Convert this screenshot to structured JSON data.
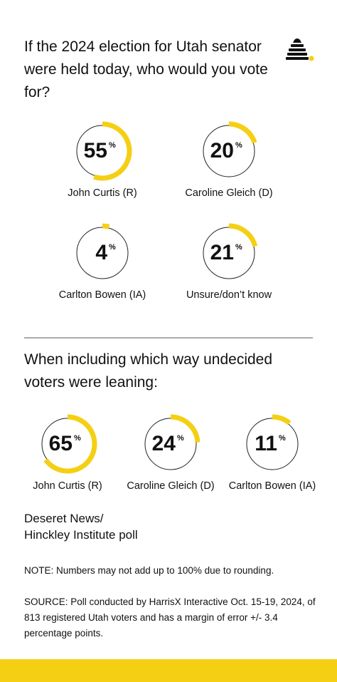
{
  "chart_data": [
    {
      "type": "donut",
      "title": "If the 2024 election for Utah senator were held today, who would you vote for?",
      "categories": [
        "John Curtis (R)",
        "Caroline Gleich (D)",
        "Carlton Bowen (IA)",
        "Unsure/don’t know"
      ],
      "values": [
        55,
        20,
        4,
        21
      ],
      "unit": "%",
      "color": "#f5cf14"
    },
    {
      "type": "donut",
      "title": "When including which way undecided voters were leaning:",
      "categories": [
        "John Curtis (R)",
        "Caroline Gleich (D)",
        "Carlton Bowen (IA)"
      ],
      "values": [
        65,
        24,
        11
      ],
      "unit": "%",
      "color": "#f5cf14"
    }
  ],
  "footer": {
    "credit": [
      "Deseret News/",
      "Hinckley Institute poll"
    ],
    "note": "NOTE: Numbers may not add up to 100% due to rounding.",
    "source": "SOURCE: Poll conducted by HarrisX Interactive Oct. 15-19, 2024, of 813 registered Utah voters and has a margin of error +/- 3.4 percentage points."
  }
}
